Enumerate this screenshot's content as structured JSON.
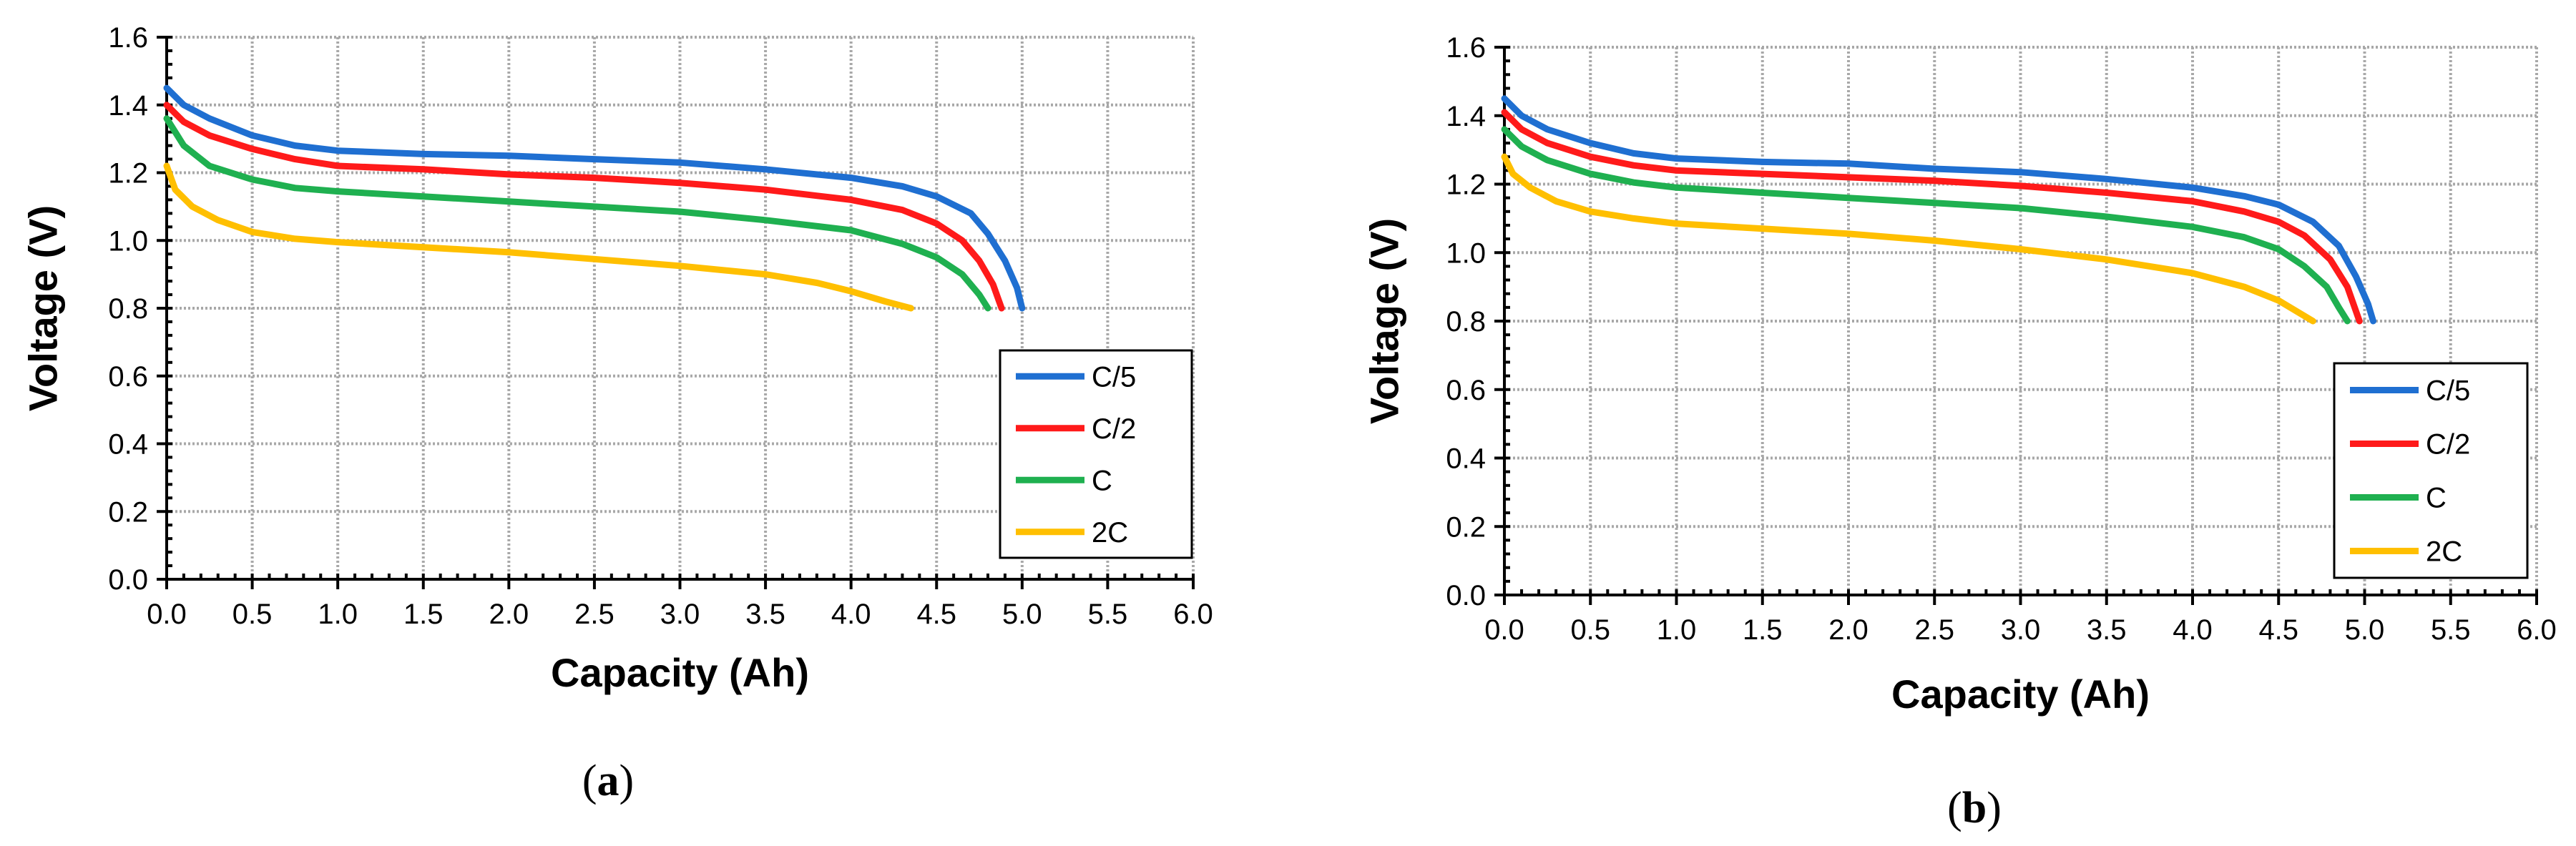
{
  "chart_data": [
    {
      "type": "line",
      "panel_label": "a",
      "xlabel": "Capacity (Ah)",
      "ylabel": "Voltage (V)",
      "xlim": [
        0,
        6
      ],
      "ylim": [
        0,
        1.6
      ],
      "xticks": [
        "0.0",
        "0.5",
        "1.0",
        "1.5",
        "2.0",
        "2.5",
        "3.0",
        "3.5",
        "4.0",
        "4.5",
        "5.0",
        "5.5",
        "6.0"
      ],
      "yticks": [
        "0.0",
        "0.2",
        "0.4",
        "0.6",
        "0.8",
        "1.0",
        "1.2",
        "1.4",
        "1.6"
      ],
      "grid": true,
      "legend_position": "right",
      "series": [
        {
          "name": "C/5",
          "color": "#1f6fd1",
          "points": [
            [
              0,
              1.45
            ],
            [
              0.1,
              1.4
            ],
            [
              0.25,
              1.36
            ],
            [
              0.5,
              1.31
            ],
            [
              0.75,
              1.28
            ],
            [
              1.0,
              1.265
            ],
            [
              1.5,
              1.255
            ],
            [
              2.0,
              1.25
            ],
            [
              2.5,
              1.24
            ],
            [
              3.0,
              1.23
            ],
            [
              3.5,
              1.21
            ],
            [
              4.0,
              1.185
            ],
            [
              4.3,
              1.16
            ],
            [
              4.5,
              1.13
            ],
            [
              4.7,
              1.08
            ],
            [
              4.8,
              1.02
            ],
            [
              4.9,
              0.94
            ],
            [
              4.97,
              0.86
            ],
            [
              5.0,
              0.8
            ]
          ]
        },
        {
          "name": "C/2",
          "color": "#ff1a1a",
          "points": [
            [
              0,
              1.4
            ],
            [
              0.1,
              1.35
            ],
            [
              0.25,
              1.31
            ],
            [
              0.5,
              1.27
            ],
            [
              0.75,
              1.24
            ],
            [
              1.0,
              1.22
            ],
            [
              1.5,
              1.21
            ],
            [
              2.0,
              1.195
            ],
            [
              2.5,
              1.185
            ],
            [
              3.0,
              1.17
            ],
            [
              3.5,
              1.15
            ],
            [
              4.0,
              1.12
            ],
            [
              4.3,
              1.09
            ],
            [
              4.5,
              1.05
            ],
            [
              4.65,
              1.0
            ],
            [
              4.75,
              0.94
            ],
            [
              4.83,
              0.87
            ],
            [
              4.88,
              0.8
            ]
          ]
        },
        {
          "name": "C",
          "color": "#1fb050",
          "points": [
            [
              0,
              1.36
            ],
            [
              0.1,
              1.28
            ],
            [
              0.25,
              1.22
            ],
            [
              0.5,
              1.18
            ],
            [
              0.75,
              1.155
            ],
            [
              1.0,
              1.145
            ],
            [
              1.5,
              1.13
            ],
            [
              2.0,
              1.115
            ],
            [
              2.5,
              1.1
            ],
            [
              3.0,
              1.085
            ],
            [
              3.5,
              1.06
            ],
            [
              4.0,
              1.03
            ],
            [
              4.3,
              0.99
            ],
            [
              4.5,
              0.95
            ],
            [
              4.65,
              0.9
            ],
            [
              4.75,
              0.84
            ],
            [
              4.8,
              0.8
            ]
          ]
        },
        {
          "name": "2C",
          "color": "#ffbf00",
          "points": [
            [
              0,
              1.22
            ],
            [
              0.05,
              1.15
            ],
            [
              0.15,
              1.1
            ],
            [
              0.3,
              1.06
            ],
            [
              0.5,
              1.025
            ],
            [
              0.75,
              1.005
            ],
            [
              1.0,
              0.995
            ],
            [
              1.5,
              0.98
            ],
            [
              2.0,
              0.965
            ],
            [
              2.5,
              0.945
            ],
            [
              3.0,
              0.925
            ],
            [
              3.5,
              0.9
            ],
            [
              3.8,
              0.875
            ],
            [
              4.0,
              0.85
            ],
            [
              4.2,
              0.82
            ],
            [
              4.35,
              0.8
            ]
          ]
        }
      ]
    },
    {
      "type": "line",
      "panel_label": "b",
      "xlabel": "Capacity (Ah)",
      "ylabel": "Voltage (V)",
      "xlim": [
        0,
        6
      ],
      "ylim": [
        0,
        1.6
      ],
      "xticks": [
        "0.0",
        "0.5",
        "1.0",
        "1.5",
        "2.0",
        "2.5",
        "3.0",
        "3.5",
        "4.0",
        "4.5",
        "5.0",
        "5.5",
        "6.0"
      ],
      "yticks": [
        "0.0",
        "0.2",
        "0.4",
        "0.6",
        "0.8",
        "1.0",
        "1.2",
        "1.4",
        "1.6"
      ],
      "grid": true,
      "legend_position": "right",
      "series": [
        {
          "name": "C/5",
          "color": "#1f6fd1",
          "points": [
            [
              0,
              1.45
            ],
            [
              0.1,
              1.4
            ],
            [
              0.25,
              1.36
            ],
            [
              0.5,
              1.32
            ],
            [
              0.75,
              1.29
            ],
            [
              1.0,
              1.275
            ],
            [
              1.5,
              1.265
            ],
            [
              2.0,
              1.26
            ],
            [
              2.5,
              1.245
            ],
            [
              3.0,
              1.235
            ],
            [
              3.5,
              1.215
            ],
            [
              4.0,
              1.19
            ],
            [
              4.3,
              1.165
            ],
            [
              4.5,
              1.14
            ],
            [
              4.7,
              1.09
            ],
            [
              4.85,
              1.02
            ],
            [
              4.95,
              0.93
            ],
            [
              5.02,
              0.85
            ],
            [
              5.05,
              0.8
            ]
          ]
        },
        {
          "name": "C/2",
          "color": "#ff1a1a",
          "points": [
            [
              0,
              1.41
            ],
            [
              0.1,
              1.36
            ],
            [
              0.25,
              1.32
            ],
            [
              0.5,
              1.28
            ],
            [
              0.75,
              1.255
            ],
            [
              1.0,
              1.24
            ],
            [
              1.5,
              1.23
            ],
            [
              2.0,
              1.22
            ],
            [
              2.5,
              1.21
            ],
            [
              3.0,
              1.195
            ],
            [
              3.5,
              1.175
            ],
            [
              4.0,
              1.15
            ],
            [
              4.3,
              1.12
            ],
            [
              4.5,
              1.09
            ],
            [
              4.65,
              1.05
            ],
            [
              4.8,
              0.98
            ],
            [
              4.9,
              0.9
            ],
            [
              4.97,
              0.8
            ]
          ]
        },
        {
          "name": "C",
          "color": "#1fb050",
          "points": [
            [
              0,
              1.36
            ],
            [
              0.1,
              1.31
            ],
            [
              0.25,
              1.27
            ],
            [
              0.5,
              1.23
            ],
            [
              0.75,
              1.205
            ],
            [
              1.0,
              1.19
            ],
            [
              1.5,
              1.175
            ],
            [
              2.0,
              1.16
            ],
            [
              2.5,
              1.145
            ],
            [
              3.0,
              1.13
            ],
            [
              3.5,
              1.105
            ],
            [
              4.0,
              1.075
            ],
            [
              4.3,
              1.045
            ],
            [
              4.5,
              1.01
            ],
            [
              4.65,
              0.96
            ],
            [
              4.78,
              0.9
            ],
            [
              4.85,
              0.84
            ],
            [
              4.9,
              0.8
            ]
          ]
        },
        {
          "name": "2C",
          "color": "#ffbf00",
          "points": [
            [
              0,
              1.28
            ],
            [
              0.05,
              1.23
            ],
            [
              0.15,
              1.19
            ],
            [
              0.3,
              1.15
            ],
            [
              0.5,
              1.12
            ],
            [
              0.75,
              1.1
            ],
            [
              1.0,
              1.085
            ],
            [
              1.5,
              1.07
            ],
            [
              2.0,
              1.055
            ],
            [
              2.5,
              1.035
            ],
            [
              3.0,
              1.01
            ],
            [
              3.5,
              0.98
            ],
            [
              4.0,
              0.94
            ],
            [
              4.3,
              0.9
            ],
            [
              4.5,
              0.86
            ],
            [
              4.6,
              0.83
            ],
            [
              4.7,
              0.8
            ]
          ]
        }
      ]
    }
  ]
}
